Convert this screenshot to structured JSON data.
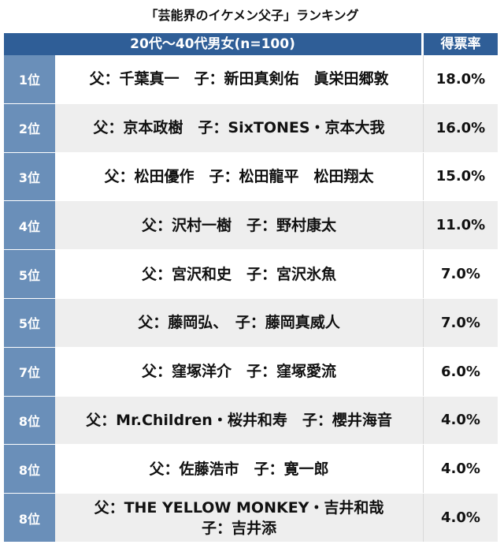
{
  "title": "「芸能界のイケメン父子」ランキング",
  "header": {
    "main": "20代〜40代男女(n=100)",
    "rate": "得票率"
  },
  "rows": [
    {
      "rank": "1位",
      "line1": "父：千葉真一　子：新田真剣佑　眞栄田郷敦",
      "line2": "",
      "rate": "18.0%"
    },
    {
      "rank": "2位",
      "line1": "父：京本政樹　子：SixTONES・京本大我",
      "line2": "",
      "rate": "16.0%"
    },
    {
      "rank": "3位",
      "line1": "父：松田優作　子：松田龍平　松田翔太",
      "line2": "",
      "rate": "15.0%"
    },
    {
      "rank": "4位",
      "line1": "父：沢村一樹　子：野村康太",
      "line2": "",
      "rate": "11.0%"
    },
    {
      "rank": "5位",
      "line1": "父：宮沢和史　子：宮沢氷魚",
      "line2": "",
      "rate": "7.0%"
    },
    {
      "rank": "5位",
      "line1": "父：藤岡弘、　子：藤岡真威人",
      "line2": "",
      "rate": "7.0%"
    },
    {
      "rank": "7位",
      "line1": "父：窪塚洋介　子：窪塚愛流",
      "line2": "",
      "rate": "6.0%"
    },
    {
      "rank": "8位",
      "line1": "父：Mr.Children・桜井和寿　子：櫻井海音",
      "line2": "",
      "rate": "4.0%"
    },
    {
      "rank": "8位",
      "line1": "父：佐藤浩市　子：寛一郎",
      "line2": "",
      "rate": "4.0%"
    },
    {
      "rank": "8位",
      "line1": "父：THE YELLOW MONKEY・吉井和哉",
      "line2": "子：吉井添",
      "rate": "4.0%"
    }
  ]
}
